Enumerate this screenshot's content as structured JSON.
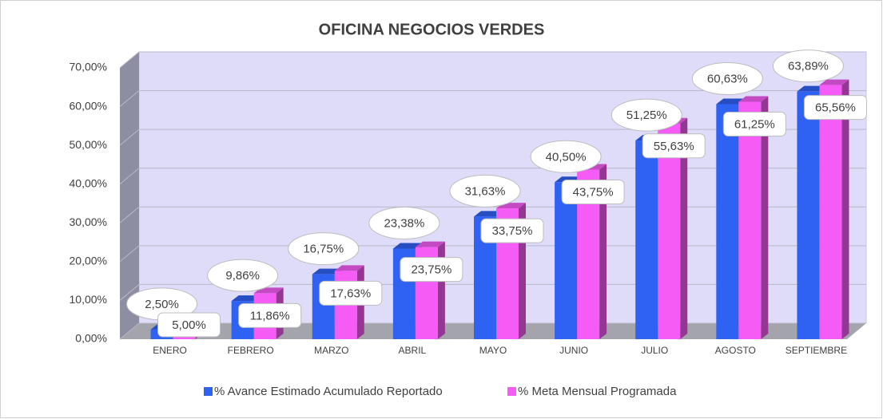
{
  "chart_data": {
    "type": "bar",
    "title": "OFICINA NEGOCIOS VERDES",
    "categories": [
      "ENERO",
      "FEBRERO",
      "MARZO",
      "ABRIL",
      "MAYO",
      "JUNIO",
      "JULIO",
      "AGOSTO",
      "SEPTIEMBRE"
    ],
    "series": [
      {
        "name": "% Avance Estimado Acumulado Reportado",
        "color": "#2f62f2",
        "values": [
          2.5,
          9.86,
          16.75,
          23.38,
          31.63,
          40.5,
          51.25,
          60.63,
          63.89
        ],
        "value_labels": [
          "2,50%",
          "9,86%",
          "16,75%",
          "23,38%",
          "31,63%",
          "40,50%",
          "51,25%",
          "60,63%",
          "63,89%"
        ]
      },
      {
        "name": "% Meta Mensual Programada",
        "color": "#f55cf5",
        "values": [
          5.0,
          11.86,
          17.63,
          23.75,
          33.75,
          43.75,
          55.63,
          61.25,
          65.56
        ],
        "value_labels": [
          "5,00%",
          "11,86%",
          "17,63%",
          "23,75%",
          "33,75%",
          "43,75%",
          "55,63%",
          "61,25%",
          "65,56%"
        ]
      }
    ],
    "ylim": [
      0,
      70
    ],
    "yticks": [
      {
        "value": 0,
        "label": "0,00%"
      },
      {
        "value": 10,
        "label": "10,00%"
      },
      {
        "value": 20,
        "label": "20,00%"
      },
      {
        "value": 30,
        "label": "30,00%"
      },
      {
        "value": 40,
        "label": "40,00%"
      },
      {
        "value": 50,
        "label": "50,00%"
      },
      {
        "value": 60,
        "label": "60,00%"
      },
      {
        "value": 70,
        "label": "70,00%"
      }
    ],
    "grid": true,
    "legend": "bottom"
  }
}
